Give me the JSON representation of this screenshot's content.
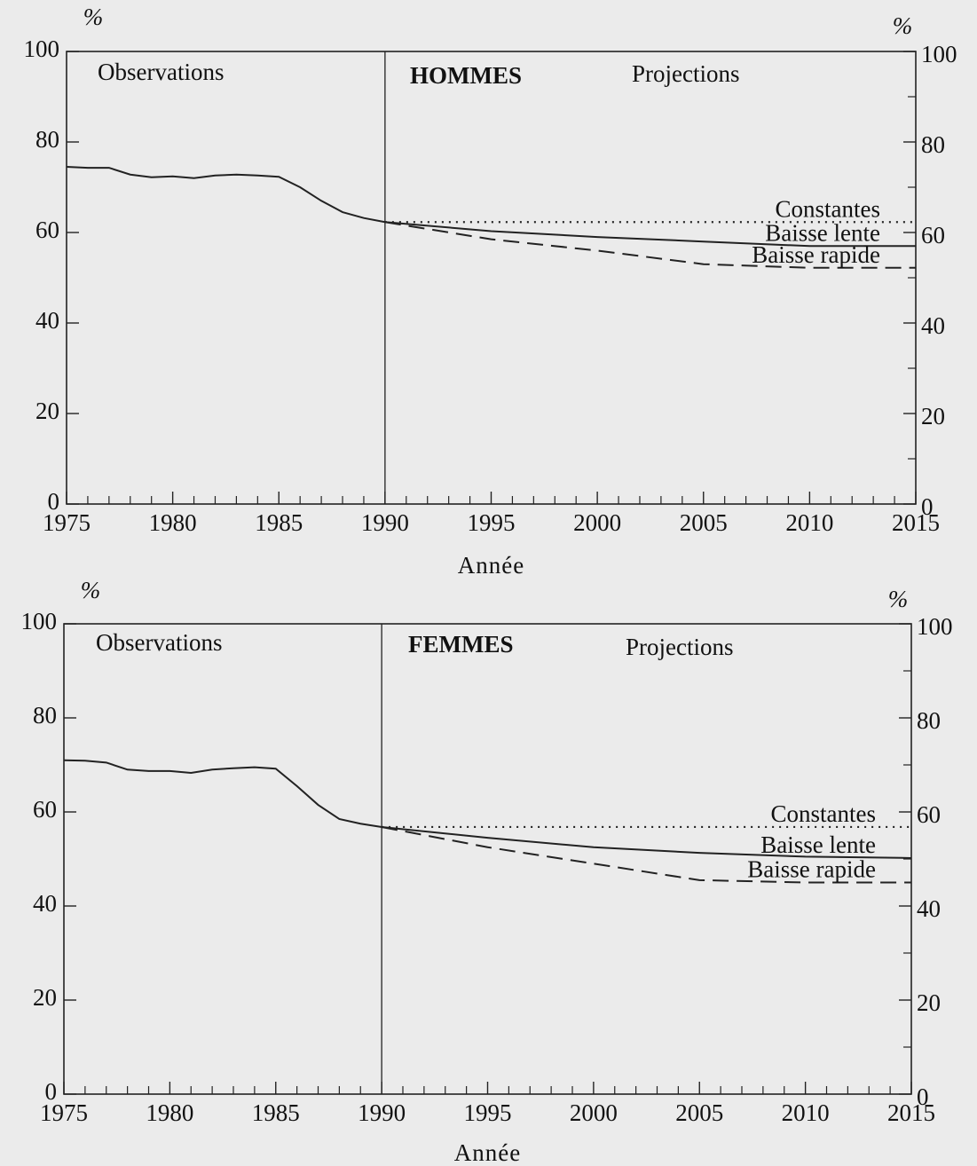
{
  "chart_data": [
    {
      "type": "line",
      "title": "HOMMES",
      "region_left": "Observations",
      "region_right": "Projections",
      "ylabel": "%",
      "y2label": "%",
      "xlabel": "Année",
      "divider_x": 1990,
      "xlim": [
        1975,
        2015
      ],
      "xticks": [
        1975,
        1980,
        1985,
        1990,
        1995,
        2000,
        2005,
        2010,
        2015
      ],
      "xminor": [
        1976,
        1977,
        1978,
        1979,
        1981,
        1982,
        1983,
        1984,
        1986,
        1987,
        1988,
        1989,
        1991,
        1992,
        1993,
        1994,
        1996,
        1997,
        1998,
        1999,
        2001,
        2002,
        2003,
        2004,
        2006,
        2007,
        2008,
        2009,
        2011,
        2012,
        2013,
        2014
      ],
      "ylim": [
        0,
        100
      ],
      "yticks": [
        0,
        20,
        40,
        60,
        80,
        100
      ],
      "yminor": [
        10,
        30,
        50,
        70,
        90
      ],
      "series": [
        {
          "name": "Observations",
          "color": "#222",
          "dash": "solid",
          "x": [
            1975,
            1976,
            1977,
            1978,
            1979,
            1980,
            1981,
            1982,
            1983,
            1984,
            1985,
            1986,
            1987,
            1988,
            1989,
            1990
          ],
          "values": [
            74.5,
            74.3,
            74.3,
            72.8,
            72.2,
            72.4,
            72.0,
            72.6,
            72.8,
            72.6,
            72.3,
            70.0,
            67.0,
            64.5,
            63.2,
            62.3
          ]
        },
        {
          "name": "Constantes",
          "color": "#222",
          "dash": "dotted",
          "x": [
            1990,
            1995,
            2000,
            2005,
            2010,
            2015
          ],
          "values": [
            62.3,
            62.3,
            62.3,
            62.3,
            62.3,
            62.3
          ]
        },
        {
          "name": "Baisse lente",
          "color": "#222",
          "dash": "solid",
          "x": [
            1990,
            1995,
            2000,
            2005,
            2010,
            2015
          ],
          "values": [
            62.3,
            60.3,
            59.0,
            58.0,
            57.0,
            57.0
          ]
        },
        {
          "name": "Baisse rapide",
          "color": "#222",
          "dash": "dashed",
          "x": [
            1990,
            1995,
            2000,
            2005,
            2010,
            2015
          ],
          "values": [
            62.3,
            58.5,
            56.0,
            53.0,
            52.2,
            52.2
          ]
        }
      ]
    },
    {
      "type": "line",
      "title": "FEMMES",
      "region_left": "Observations",
      "region_right": "Projections",
      "ylabel": "%",
      "y2label": "%",
      "xlabel": "Année",
      "divider_x": 1990,
      "xlim": [
        1975,
        2015
      ],
      "xticks": [
        1975,
        1980,
        1985,
        1990,
        1995,
        2000,
        2005,
        2010,
        2015
      ],
      "xminor": [
        1976,
        1977,
        1978,
        1979,
        1981,
        1982,
        1983,
        1984,
        1986,
        1987,
        1988,
        1989,
        1991,
        1992,
        1993,
        1994,
        1996,
        1997,
        1998,
        1999,
        2001,
        2002,
        2003,
        2004,
        2006,
        2007,
        2008,
        2009,
        2011,
        2012,
        2013,
        2014
      ],
      "ylim": [
        0,
        100
      ],
      "yticks": [
        0,
        20,
        40,
        60,
        80,
        100
      ],
      "yminor": [
        10,
        30,
        50,
        70,
        90
      ],
      "series": [
        {
          "name": "Observations",
          "color": "#222",
          "dash": "solid",
          "x": [
            1975,
            1976,
            1977,
            1978,
            1979,
            1980,
            1981,
            1982,
            1983,
            1984,
            1985,
            1986,
            1987,
            1988,
            1989,
            1990
          ],
          "values": [
            71.0,
            70.9,
            70.5,
            69.0,
            68.7,
            68.7,
            68.3,
            69.0,
            69.3,
            69.5,
            69.2,
            65.5,
            61.5,
            58.5,
            57.5,
            56.8
          ]
        },
        {
          "name": "Constantes",
          "color": "#222",
          "dash": "dotted",
          "x": [
            1990,
            1995,
            2000,
            2005,
            2010,
            2015
          ],
          "values": [
            56.8,
            56.8,
            56.8,
            56.8,
            56.8,
            56.8
          ]
        },
        {
          "name": "Baisse lente",
          "color": "#222",
          "dash": "solid",
          "x": [
            1990,
            1995,
            2000,
            2005,
            2010,
            2015
          ],
          "values": [
            56.8,
            54.5,
            52.5,
            51.3,
            50.5,
            50.2
          ]
        },
        {
          "name": "Baisse rapide",
          "color": "#222",
          "dash": "dashed",
          "x": [
            1990,
            1995,
            2000,
            2005,
            2010,
            2015
          ],
          "values": [
            56.8,
            52.5,
            49.0,
            45.5,
            45.0,
            45.0
          ]
        }
      ]
    }
  ]
}
